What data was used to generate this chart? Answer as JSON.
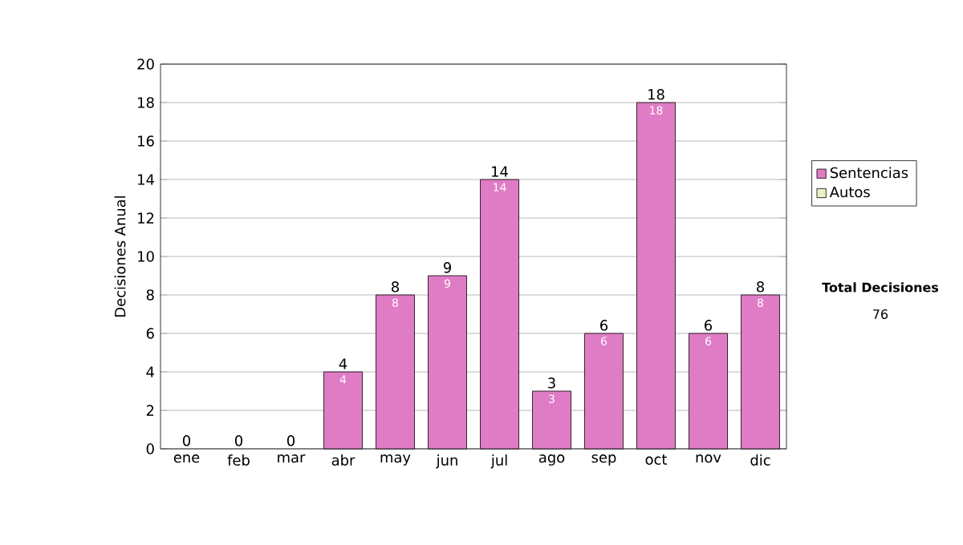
{
  "chart_data": {
    "type": "bar",
    "stacked": true,
    "ylabel": "Decisiones Anual",
    "categories": [
      "ene",
      "feb",
      "mar",
      "abr",
      "may",
      "jun",
      "jul",
      "ago",
      "sep",
      "oct",
      "nov",
      "dic"
    ],
    "series": [
      {
        "name": "Sentencias",
        "color": "#e07cc6",
        "values": [
          0,
          0,
          0,
          4,
          8,
          9,
          14,
          3,
          6,
          18,
          6,
          8
        ],
        "value_labels": [
          null,
          null,
          null,
          "4",
          "8",
          "9",
          "14",
          "3",
          "6",
          "18",
          "6",
          "8"
        ]
      },
      {
        "name": "Autos",
        "color": "#eef0c0",
        "values": [
          null,
          null,
          null,
          null,
          null,
          null,
          null,
          null,
          null,
          null,
          null,
          null
        ]
      }
    ],
    "totals": [
      "0",
      "0",
      "0",
      "4",
      "8",
      "9",
      "14",
      "3",
      "6",
      "18",
      "6",
      "8"
    ],
    "ylim": [
      0,
      20
    ],
    "yticks": [
      0,
      2,
      4,
      6,
      8,
      10,
      12,
      14,
      16,
      18,
      20
    ],
    "grid": "y",
    "legend": "right",
    "annotations": [
      "Total Decisiones",
      "76"
    ]
  }
}
